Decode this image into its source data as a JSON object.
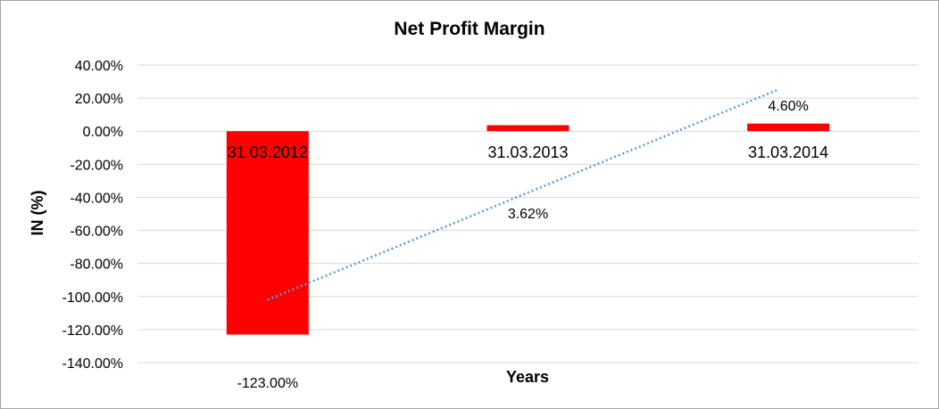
{
  "chart_data": {
    "type": "bar",
    "title": "Net Profit Margin",
    "xlabel": "Years",
    "ylabel": "IN (%)",
    "categories": [
      "31.03.2012",
      "31.03.2013",
      "31.03.2014"
    ],
    "values": [
      -123.0,
      3.62,
      4.6
    ],
    "data_labels": [
      "-123.00%",
      "3.62%",
      "4.60%"
    ],
    "ylim": [
      -140,
      40
    ],
    "y_ticks": [
      40,
      20,
      0,
      -20,
      -40,
      -60,
      -80,
      -100,
      -120,
      -140
    ],
    "y_tick_labels": [
      "40.00%",
      "20.00%",
      "0.00%",
      "-20.00%",
      "-40.00%",
      "-60.00%",
      "-80.00%",
      "-100.00%",
      "-120.00%",
      "-140.00%"
    ],
    "grid": true,
    "legend": "none",
    "bar_color": "#ff0000",
    "trendline": {
      "type": "linear",
      "style": "dotted",
      "color": "#5b9bd5",
      "start_value": -102,
      "end_value": 25
    }
  }
}
